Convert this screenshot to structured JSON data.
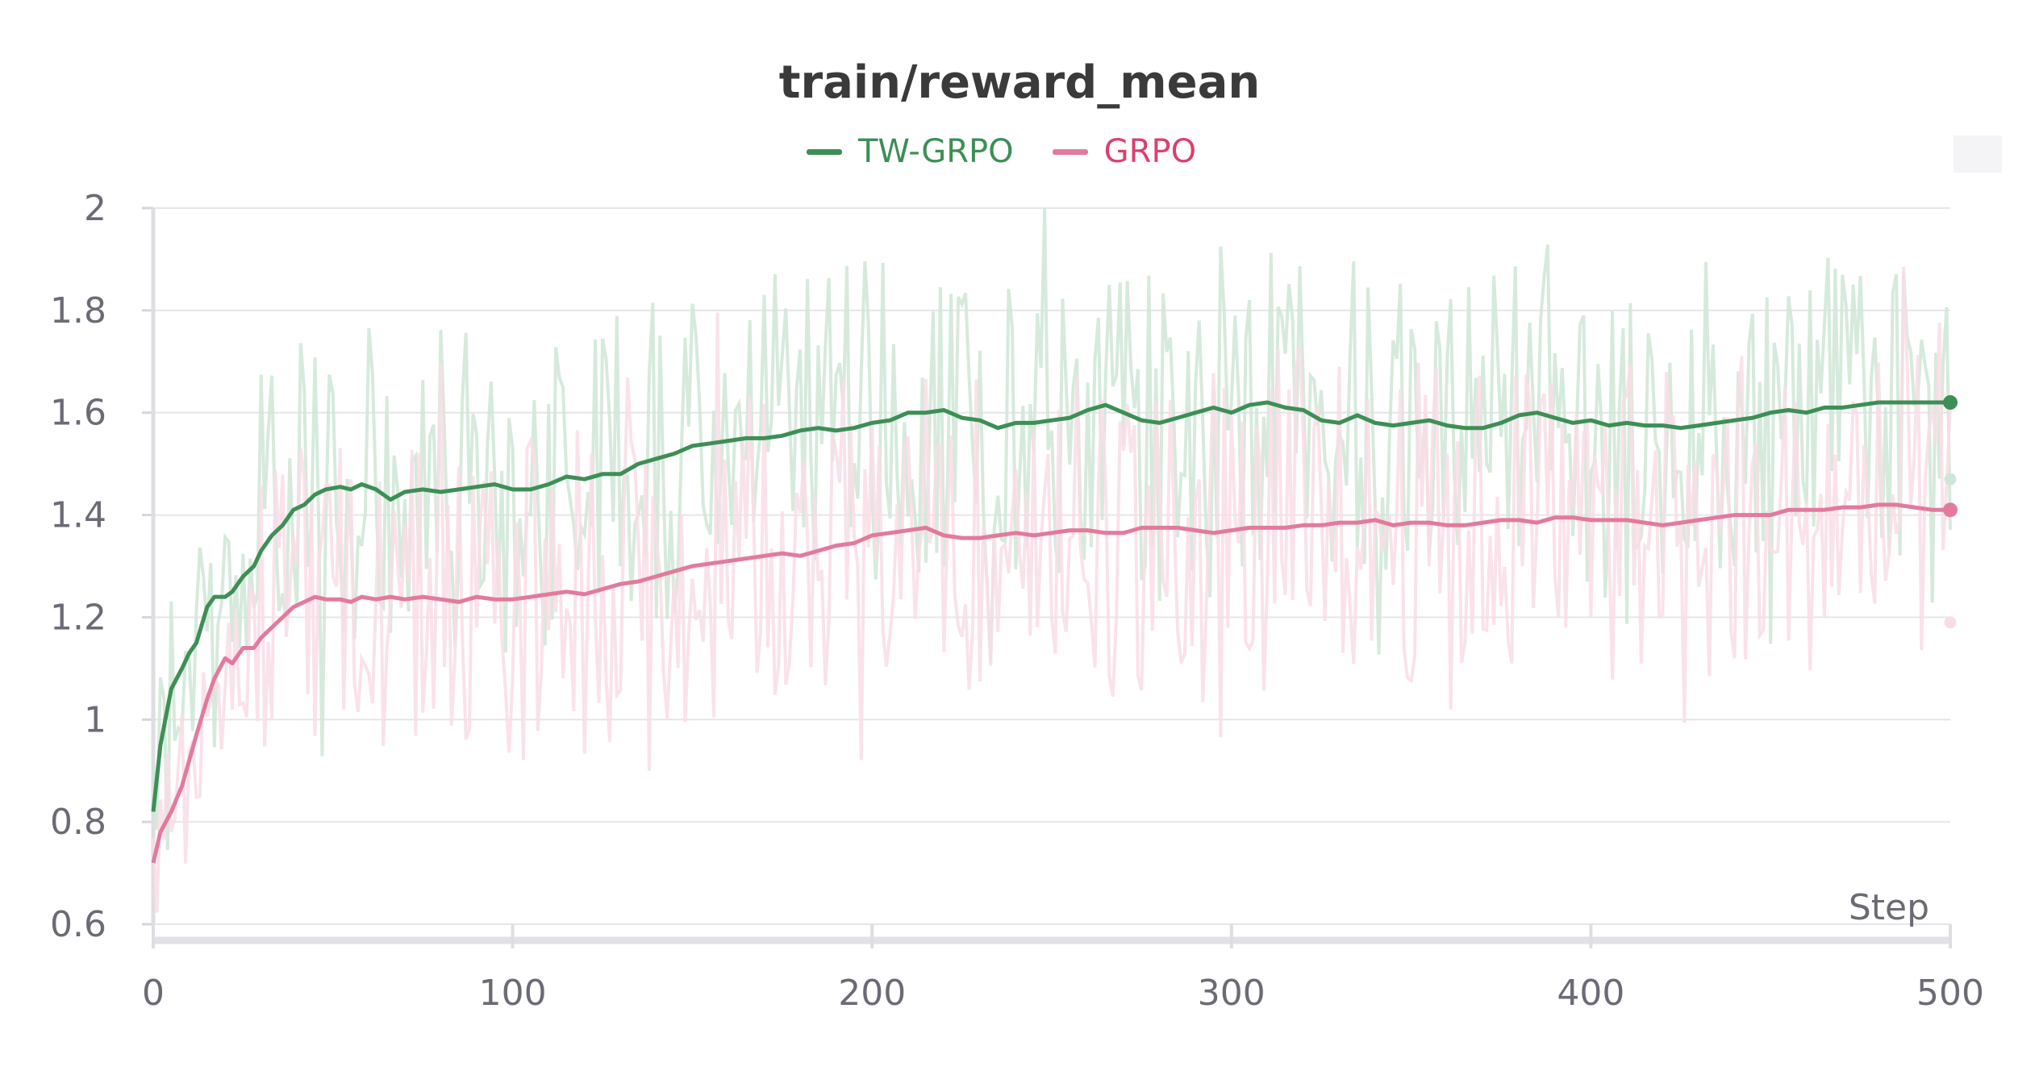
{
  "chart_data": {
    "type": "line",
    "title": "train/reward_mean",
    "xlabel": "Step",
    "ylabel": "",
    "xlim": [
      0,
      500
    ],
    "ylim": [
      0.6,
      2.0
    ],
    "xticks": [
      "0",
      "100",
      "200",
      "300",
      "400",
      "500"
    ],
    "yticks": [
      "0.6",
      "0.8",
      "1",
      "1.2",
      "1.4",
      "1.6",
      "1.8",
      "2"
    ],
    "legend_position": "top-center",
    "grid": true,
    "series": [
      {
        "name": "TW-GRPO",
        "color": "#3d8f55",
        "raw_color": "#cfe6d6",
        "smoothed": {
          "x": [
            0,
            2,
            5,
            8,
            10,
            12,
            15,
            17,
            20,
            22,
            25,
            28,
            30,
            33,
            36,
            39,
            42,
            45,
            48,
            52,
            55,
            58,
            62,
            66,
            70,
            75,
            80,
            85,
            90,
            95,
            100,
            105,
            110,
            115,
            120,
            125,
            130,
            135,
            140,
            145,
            150,
            155,
            160,
            165,
            170,
            175,
            180,
            185,
            190,
            195,
            200,
            205,
            210,
            215,
            220,
            225,
            230,
            235,
            240,
            245,
            250,
            255,
            260,
            265,
            270,
            275,
            280,
            285,
            290,
            295,
            300,
            305,
            310,
            315,
            320,
            325,
            330,
            335,
            340,
            345,
            350,
            355,
            360,
            365,
            370,
            375,
            380,
            385,
            390,
            395,
            400,
            405,
            410,
            415,
            420,
            425,
            430,
            435,
            440,
            445,
            450,
            455,
            460,
            465,
            470,
            475,
            480,
            485,
            490,
            495,
            500
          ],
          "y": [
            0.82,
            0.95,
            1.06,
            1.1,
            1.13,
            1.15,
            1.22,
            1.24,
            1.24,
            1.25,
            1.28,
            1.3,
            1.33,
            1.36,
            1.38,
            1.41,
            1.42,
            1.44,
            1.45,
            1.455,
            1.45,
            1.46,
            1.45,
            1.43,
            1.445,
            1.45,
            1.445,
            1.45,
            1.455,
            1.46,
            1.45,
            1.45,
            1.46,
            1.475,
            1.47,
            1.48,
            1.48,
            1.5,
            1.51,
            1.52,
            1.535,
            1.54,
            1.545,
            1.55,
            1.55,
            1.555,
            1.565,
            1.57,
            1.565,
            1.57,
            1.58,
            1.585,
            1.6,
            1.6,
            1.605,
            1.59,
            1.585,
            1.57,
            1.58,
            1.58,
            1.585,
            1.59,
            1.605,
            1.615,
            1.6,
            1.585,
            1.58,
            1.59,
            1.6,
            1.61,
            1.6,
            1.615,
            1.62,
            1.61,
            1.605,
            1.585,
            1.58,
            1.595,
            1.58,
            1.575,
            1.58,
            1.585,
            1.575,
            1.57,
            1.57,
            1.58,
            1.595,
            1.6,
            1.59,
            1.58,
            1.585,
            1.575,
            1.58,
            1.575,
            1.575,
            1.57,
            1.575,
            1.58,
            1.585,
            1.59,
            1.6,
            1.605,
            1.6,
            1.61,
            1.61,
            1.615,
            1.62,
            1.62,
            1.62,
            1.62,
            1.62
          ]
        },
        "last_value": 1.62,
        "last_raw_value": 1.47
      },
      {
        "name": "GRPO",
        "color": "#e27a9e",
        "raw_color": "#f9dde6",
        "smoothed": {
          "x": [
            0,
            2,
            5,
            8,
            10,
            12,
            15,
            17,
            20,
            22,
            25,
            28,
            30,
            33,
            36,
            39,
            42,
            45,
            48,
            52,
            55,
            58,
            62,
            66,
            70,
            75,
            80,
            85,
            90,
            95,
            100,
            105,
            110,
            115,
            120,
            125,
            130,
            135,
            140,
            145,
            150,
            155,
            160,
            165,
            170,
            175,
            180,
            185,
            190,
            195,
            200,
            205,
            210,
            215,
            220,
            225,
            230,
            235,
            240,
            245,
            250,
            255,
            260,
            265,
            270,
            275,
            280,
            285,
            290,
            295,
            300,
            305,
            310,
            315,
            320,
            325,
            330,
            335,
            340,
            345,
            350,
            355,
            360,
            365,
            370,
            375,
            380,
            385,
            390,
            395,
            400,
            405,
            410,
            415,
            420,
            425,
            430,
            435,
            440,
            445,
            450,
            455,
            460,
            465,
            470,
            475,
            480,
            485,
            490,
            495,
            500
          ],
          "y": [
            0.72,
            0.78,
            0.82,
            0.87,
            0.92,
            0.97,
            1.04,
            1.08,
            1.12,
            1.11,
            1.14,
            1.14,
            1.16,
            1.18,
            1.2,
            1.22,
            1.23,
            1.24,
            1.235,
            1.235,
            1.23,
            1.24,
            1.235,
            1.24,
            1.235,
            1.24,
            1.235,
            1.23,
            1.24,
            1.235,
            1.235,
            1.24,
            1.245,
            1.25,
            1.245,
            1.255,
            1.265,
            1.27,
            1.28,
            1.29,
            1.3,
            1.305,
            1.31,
            1.315,
            1.32,
            1.325,
            1.32,
            1.33,
            1.34,
            1.345,
            1.36,
            1.365,
            1.37,
            1.375,
            1.36,
            1.355,
            1.355,
            1.36,
            1.365,
            1.36,
            1.365,
            1.37,
            1.37,
            1.365,
            1.365,
            1.375,
            1.375,
            1.375,
            1.37,
            1.365,
            1.37,
            1.375,
            1.375,
            1.375,
            1.38,
            1.38,
            1.385,
            1.385,
            1.39,
            1.38,
            1.385,
            1.385,
            1.38,
            1.38,
            1.385,
            1.39,
            1.39,
            1.385,
            1.395,
            1.395,
            1.39,
            1.39,
            1.39,
            1.385,
            1.38,
            1.385,
            1.39,
            1.395,
            1.4,
            1.4,
            1.4,
            1.41,
            1.41,
            1.41,
            1.415,
            1.415,
            1.42,
            1.42,
            1.415,
            1.41,
            1.41
          ]
        },
        "last_value": 1.41,
        "last_raw_value": 1.19
      }
    ]
  }
}
